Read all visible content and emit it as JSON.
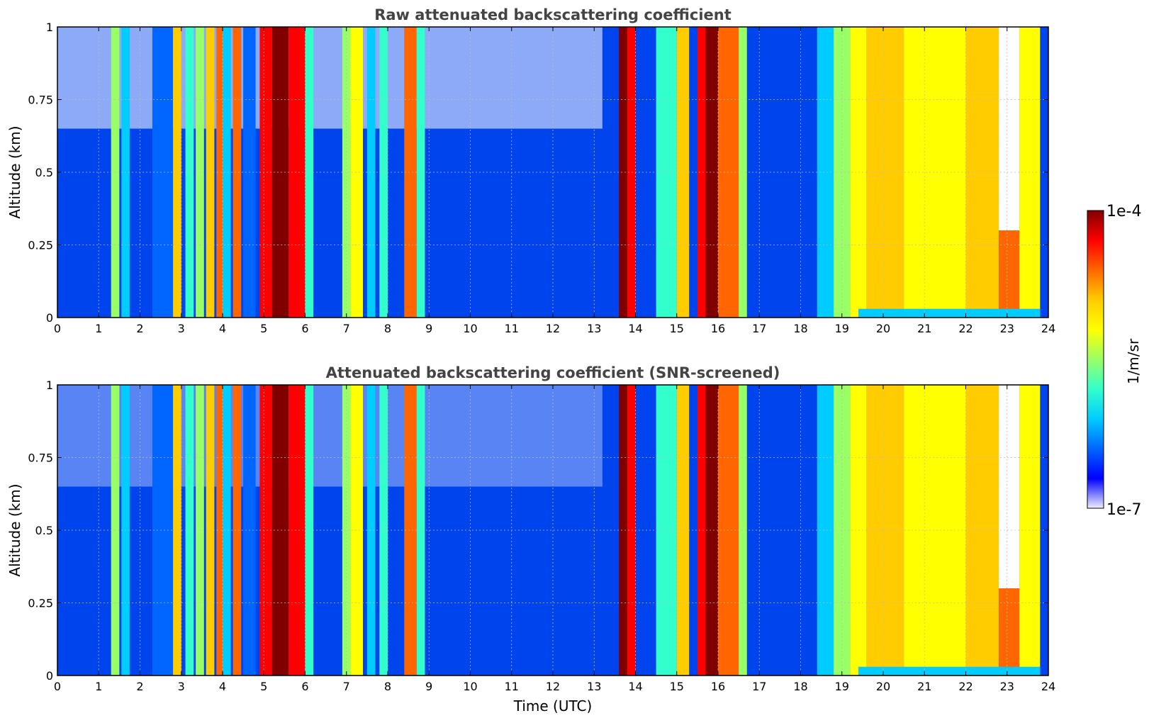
{
  "chart_data": [
    {
      "type": "heatmap",
      "title": "Raw attenuated backscattering coefficient",
      "xlabel": "",
      "ylabel": "Altitude (km)",
      "xlim": [
        0,
        24
      ],
      "ylim": [
        0,
        1
      ],
      "x_ticks": [
        "0",
        "1",
        "2",
        "3",
        "4",
        "5",
        "6",
        "7",
        "8",
        "9",
        "10",
        "11",
        "12",
        "13",
        "14",
        "15",
        "16",
        "17",
        "18",
        "19",
        "20",
        "21",
        "22",
        "23",
        "24"
      ],
      "y_ticks": [
        "0",
        "0.25",
        "0.5",
        "0.75",
        "1"
      ],
      "grid": true,
      "colormap": "jet",
      "color_scale": "log",
      "screened": false
    },
    {
      "type": "heatmap",
      "title": "Attenuated backscattering coefficient (SNR-screened)",
      "xlabel": "Time (UTC)",
      "ylabel": "Altitude (km)",
      "xlim": [
        0,
        24
      ],
      "ylim": [
        0,
        1
      ],
      "x_ticks": [
        "0",
        "1",
        "2",
        "3",
        "4",
        "5",
        "6",
        "7",
        "8",
        "9",
        "10",
        "11",
        "12",
        "13",
        "14",
        "15",
        "16",
        "17",
        "18",
        "19",
        "20",
        "21",
        "22",
        "23",
        "24"
      ],
      "y_ticks": [
        "0",
        "0.25",
        "0.5",
        "0.75",
        "1"
      ],
      "grid": true,
      "colormap": "jet",
      "color_scale": "log",
      "screened": true
    }
  ],
  "colorbar": {
    "label": "1/m/sr",
    "max_label": "1e-4",
    "min_label": "1e-7",
    "range": [
      1e-07,
      0.0001
    ],
    "scale": "log",
    "colors": [
      "#eeeeff",
      "#0000ff",
      "#0066ff",
      "#00ccff",
      "#33ffcc",
      "#99ff66",
      "#ffff00",
      "#ffcc00",
      "#ff6600",
      "#ff0000",
      "#800000"
    ]
  }
}
